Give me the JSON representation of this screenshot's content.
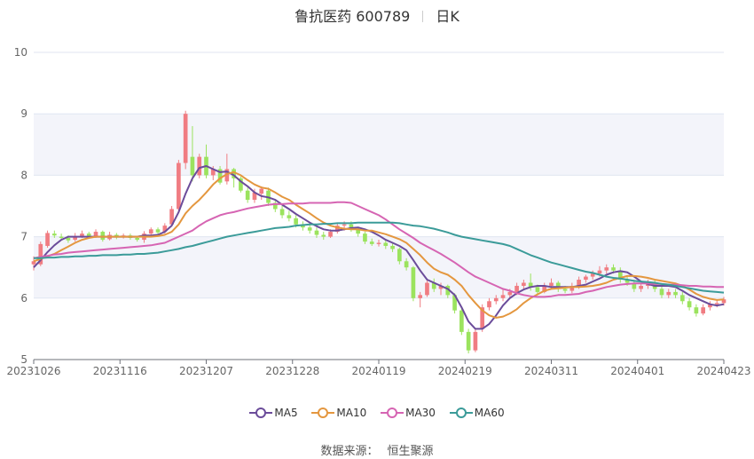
{
  "title": {
    "name": "鲁抗医药 600789",
    "period": "日K"
  },
  "source": {
    "label": "数据来源：",
    "value": "恒生聚源"
  },
  "colors": {
    "up": "#f07c82",
    "down": "#9be35e",
    "ma5": "#6b4c9a",
    "ma10": "#e4973f",
    "ma30": "#d665b3",
    "ma60": "#3b9b99",
    "band": "#f3f4fa",
    "grid": "#e0e6f1"
  },
  "chart_data": {
    "type": "candlestick",
    "ylim": [
      5,
      10
    ],
    "yticks": [
      5,
      6,
      7,
      8,
      9,
      10
    ],
    "xticks": [
      "20231026",
      "20231116",
      "20231207",
      "20231228",
      "20240119",
      "20240219",
      "20240311",
      "20240401",
      "20240423"
    ],
    "legend": [
      "MA5",
      "MA10",
      "MA30",
      "MA60"
    ],
    "legend_position": "bottom",
    "candles": [
      [
        6.55,
        6.6,
        6.68,
        6.45
      ],
      [
        6.55,
        6.88,
        6.92,
        6.52
      ],
      [
        6.85,
        7.06,
        7.1,
        6.82
      ],
      [
        7.05,
        7.02,
        7.1,
        6.98
      ],
      [
        7.0,
        6.98,
        7.05,
        6.94
      ],
      [
        6.98,
        6.94,
        7.02,
        6.9
      ],
      [
        6.95,
        7.0,
        7.06,
        6.92
      ],
      [
        7.0,
        7.05,
        7.1,
        6.98
      ],
      [
        7.05,
        7.0,
        7.08,
        6.97
      ],
      [
        7.0,
        7.08,
        7.12,
        6.98
      ],
      [
        7.08,
        6.95,
        7.1,
        6.92
      ],
      [
        6.96,
        7.03,
        7.08,
        6.94
      ],
      [
        7.03,
        7.0,
        7.06,
        6.96
      ],
      [
        7.0,
        7.02,
        7.05,
        6.97
      ],
      [
        7.02,
        6.98,
        7.05,
        6.95
      ],
      [
        6.98,
        6.95,
        7.0,
        6.92
      ],
      [
        6.95,
        7.05,
        7.09,
        6.9
      ],
      [
        7.05,
        7.12,
        7.15,
        7.02
      ],
      [
        7.12,
        7.07,
        7.15,
        7.04
      ],
      [
        7.08,
        7.18,
        7.22,
        7.05
      ],
      [
        7.2,
        7.45,
        7.5,
        7.18
      ],
      [
        7.45,
        8.2,
        8.25,
        7.4
      ],
      [
        8.2,
        9.0,
        9.05,
        8.1
      ],
      [
        8.3,
        8.0,
        8.8,
        7.9
      ],
      [
        8.0,
        8.3,
        8.35,
        7.95
      ],
      [
        8.3,
        8.0,
        8.5,
        7.95
      ],
      [
        8.0,
        8.1,
        8.15,
        7.92
      ],
      [
        8.1,
        7.88,
        8.15,
        7.85
      ],
      [
        7.9,
        8.1,
        8.35,
        7.85
      ],
      [
        8.1,
        7.95,
        8.12,
        7.8
      ],
      [
        7.95,
        7.75,
        7.98,
        7.72
      ],
      [
        7.75,
        7.6,
        7.8,
        7.55
      ],
      [
        7.6,
        7.72,
        7.78,
        7.55
      ],
      [
        7.7,
        7.78,
        7.82,
        7.6
      ],
      [
        7.75,
        7.55,
        7.8,
        7.5
      ],
      [
        7.55,
        7.45,
        7.6,
        7.4
      ],
      [
        7.45,
        7.35,
        7.5,
        7.3
      ],
      [
        7.35,
        7.3,
        7.42,
        7.25
      ],
      [
        7.3,
        7.2,
        7.35,
        7.15
      ],
      [
        7.2,
        7.15,
        7.25,
        7.1
      ],
      [
        7.15,
        7.1,
        7.2,
        7.05
      ],
      [
        7.1,
        7.03,
        7.15,
        6.98
      ],
      [
        7.03,
        7.0,
        7.08,
        6.95
      ],
      [
        7.0,
        7.08,
        7.12,
        6.98
      ],
      [
        7.08,
        7.18,
        7.22,
        7.05
      ],
      [
        7.18,
        7.2,
        7.25,
        7.1
      ],
      [
        7.2,
        7.12,
        7.25,
        7.08
      ],
      [
        7.12,
        7.05,
        7.15,
        7.0
      ],
      [
        7.05,
        6.92,
        7.08,
        6.88
      ],
      [
        6.92,
        6.88,
        6.97,
        6.85
      ],
      [
        6.88,
        6.9,
        6.95,
        6.84
      ],
      [
        6.9,
        6.85,
        6.95,
        6.8
      ],
      [
        6.85,
        6.8,
        6.9,
        6.75
      ],
      [
        6.8,
        6.6,
        6.82,
        6.55
      ],
      [
        6.6,
        6.5,
        6.65,
        6.45
      ],
      [
        6.5,
        6.0,
        6.52,
        5.95
      ],
      [
        6.0,
        6.05,
        6.1,
        5.85
      ],
      [
        6.05,
        6.25,
        6.3,
        6.02
      ],
      [
        6.25,
        6.15,
        6.32,
        6.1
      ],
      [
        6.15,
        6.2,
        6.25,
        6.05
      ],
      [
        6.2,
        6.05,
        6.22,
        6.0
      ],
      [
        6.05,
        5.8,
        6.08,
        5.75
      ],
      [
        5.8,
        5.45,
        5.85,
        5.4
      ],
      [
        5.45,
        5.15,
        5.5,
        5.1
      ],
      [
        5.15,
        5.45,
        5.5,
        5.12
      ],
      [
        5.5,
        5.85,
        5.9,
        5.45
      ],
      [
        5.85,
        5.95,
        6.0,
        5.8
      ],
      [
        5.95,
        6.0,
        6.05,
        5.9
      ],
      [
        6.0,
        6.05,
        6.15,
        5.95
      ],
      [
        6.05,
        6.1,
        6.15,
        6.0
      ],
      [
        6.1,
        6.2,
        6.25,
        6.05
      ],
      [
        6.2,
        6.25,
        6.3,
        6.15
      ],
      [
        6.25,
        6.18,
        6.4,
        6.12
      ],
      [
        6.18,
        6.1,
        6.22,
        6.05
      ],
      [
        6.1,
        6.2,
        6.25,
        6.08
      ],
      [
        6.2,
        6.25,
        6.32,
        6.15
      ],
      [
        6.25,
        6.15,
        6.28,
        6.1
      ],
      [
        6.15,
        6.12,
        6.2,
        6.08
      ],
      [
        6.12,
        6.2,
        6.25,
        6.08
      ],
      [
        6.2,
        6.3,
        6.35,
        6.15
      ],
      [
        6.3,
        6.35,
        6.38,
        6.25
      ],
      [
        6.35,
        6.4,
        6.45,
        6.3
      ],
      [
        6.4,
        6.45,
        6.52,
        6.35
      ],
      [
        6.45,
        6.5,
        6.55,
        6.4
      ],
      [
        6.5,
        6.45,
        6.55,
        6.4
      ],
      [
        6.45,
        6.3,
        6.5,
        6.25
      ],
      [
        6.3,
        6.25,
        6.35,
        6.2
      ],
      [
        6.25,
        6.15,
        6.3,
        6.1
      ],
      [
        6.15,
        6.2,
        6.25,
        6.1
      ],
      [
        6.2,
        6.25,
        6.3,
        6.15
      ],
      [
        6.25,
        6.15,
        6.3,
        6.1
      ],
      [
        6.15,
        6.05,
        6.2,
        6.0
      ],
      [
        6.05,
        6.1,
        6.15,
        6.0
      ],
      [
        6.1,
        6.05,
        6.15,
        6.0
      ],
      [
        6.05,
        5.95,
        6.1,
        5.9
      ],
      [
        5.95,
        5.85,
        6.0,
        5.8
      ],
      [
        5.85,
        5.75,
        5.9,
        5.7
      ],
      [
        5.75,
        5.85,
        5.9,
        5.72
      ],
      [
        5.85,
        5.9,
        5.95,
        5.8
      ],
      [
        5.9,
        5.92,
        5.97,
        5.85
      ],
      [
        5.92,
        5.98,
        6.02,
        5.88
      ]
    ],
    "series": [
      {
        "name": "MA5",
        "values": [
          6.5,
          6.62,
          6.75,
          6.86,
          6.95,
          7.0,
          7.0,
          7.0,
          7.0,
          7.0,
          7.0,
          7.0,
          7.0,
          7.0,
          7.0,
          7.0,
          7.02,
          7.02,
          7.03,
          7.08,
          7.18,
          7.4,
          7.7,
          7.95,
          8.12,
          8.15,
          8.1,
          8.05,
          8.06,
          8.0,
          7.9,
          7.82,
          7.72,
          7.66,
          7.64,
          7.6,
          7.52,
          7.45,
          7.37,
          7.3,
          7.23,
          7.17,
          7.12,
          7.1,
          7.1,
          7.12,
          7.14,
          7.15,
          7.12,
          7.08,
          7.02,
          6.95,
          6.9,
          6.85,
          6.78,
          6.62,
          6.45,
          6.3,
          6.25,
          6.2,
          6.15,
          6.05,
          5.85,
          5.62,
          5.5,
          5.5,
          5.58,
          5.72,
          5.88,
          6.0,
          6.08,
          6.14,
          6.18,
          6.2,
          6.2,
          6.18,
          6.18,
          6.18,
          6.18,
          6.2,
          6.22,
          6.27,
          6.32,
          6.38,
          6.42,
          6.44,
          6.42,
          6.35,
          6.27,
          6.23,
          6.2,
          6.2,
          6.2,
          6.18,
          6.12,
          6.05,
          6.0,
          5.95,
          5.9,
          5.88,
          5.9
        ]
      },
      {
        "name": "MA10",
        "values": [
          6.6,
          6.64,
          6.68,
          6.72,
          6.78,
          6.84,
          6.9,
          6.95,
          6.98,
          7.0,
          7.0,
          7.0,
          7.0,
          7.0,
          7.0,
          7.0,
          7.0,
          7.0,
          7.01,
          7.03,
          7.08,
          7.2,
          7.38,
          7.5,
          7.6,
          7.72,
          7.85,
          7.95,
          8.02,
          8.05,
          8.0,
          7.92,
          7.85,
          7.8,
          7.78,
          7.72,
          7.65,
          7.6,
          7.52,
          7.45,
          7.38,
          7.3,
          7.23,
          7.18,
          7.15,
          7.13,
          7.12,
          7.12,
          7.1,
          7.1,
          7.07,
          7.04,
          7.0,
          6.96,
          6.9,
          6.8,
          6.7,
          6.58,
          6.48,
          6.42,
          6.38,
          6.3,
          6.2,
          6.05,
          5.92,
          5.8,
          5.72,
          5.68,
          5.7,
          5.75,
          5.82,
          5.92,
          6.0,
          6.06,
          6.12,
          6.15,
          6.16,
          6.17,
          6.18,
          6.18,
          6.19,
          6.2,
          6.22,
          6.25,
          6.3,
          6.33,
          6.36,
          6.36,
          6.35,
          6.33,
          6.3,
          6.28,
          6.26,
          6.24,
          6.2,
          6.14,
          6.07,
          6.02,
          5.99,
          5.97,
          5.98
        ]
      },
      {
        "name": "MA30",
        "values": [
          6.65,
          6.67,
          6.69,
          6.71,
          6.72,
          6.74,
          6.75,
          6.76,
          6.77,
          6.78,
          6.79,
          6.8,
          6.81,
          6.82,
          6.83,
          6.84,
          6.85,
          6.86,
          6.88,
          6.9,
          6.95,
          7.0,
          7.05,
          7.1,
          7.18,
          7.25,
          7.3,
          7.35,
          7.38,
          7.4,
          7.43,
          7.46,
          7.48,
          7.5,
          7.52,
          7.53,
          7.53,
          7.54,
          7.54,
          7.54,
          7.55,
          7.55,
          7.55,
          7.55,
          7.56,
          7.56,
          7.55,
          7.5,
          7.45,
          7.4,
          7.35,
          7.28,
          7.2,
          7.12,
          7.05,
          6.98,
          6.9,
          6.84,
          6.78,
          6.72,
          6.65,
          6.58,
          6.5,
          6.42,
          6.35,
          6.3,
          6.25,
          6.2,
          6.15,
          6.12,
          6.08,
          6.05,
          6.03,
          6.02,
          6.02,
          6.03,
          6.05,
          6.05,
          6.06,
          6.07,
          6.1,
          6.12,
          6.15,
          6.18,
          6.2,
          6.22,
          6.23,
          6.24,
          6.24,
          6.24,
          6.23,
          6.23,
          6.22,
          6.22,
          6.21,
          6.2,
          6.2,
          6.19,
          6.19,
          6.18,
          6.18
        ]
      },
      {
        "name": "MA60",
        "values": [
          6.65,
          6.65,
          6.66,
          6.66,
          6.67,
          6.67,
          6.68,
          6.68,
          6.69,
          6.69,
          6.7,
          6.7,
          6.7,
          6.71,
          6.71,
          6.72,
          6.72,
          6.73,
          6.74,
          6.76,
          6.78,
          6.8,
          6.83,
          6.85,
          6.88,
          6.91,
          6.94,
          6.97,
          7.0,
          7.02,
          7.04,
          7.06,
          7.08,
          7.1,
          7.12,
          7.14,
          7.15,
          7.16,
          7.18,
          7.19,
          7.2,
          7.2,
          7.21,
          7.21,
          7.22,
          7.22,
          7.22,
          7.23,
          7.23,
          7.23,
          7.23,
          7.23,
          7.23,
          7.22,
          7.2,
          7.18,
          7.17,
          7.15,
          7.13,
          7.1,
          7.07,
          7.03,
          7.0,
          6.98,
          6.96,
          6.94,
          6.92,
          6.9,
          6.88,
          6.85,
          6.8,
          6.75,
          6.7,
          6.66,
          6.62,
          6.58,
          6.55,
          6.52,
          6.49,
          6.46,
          6.43,
          6.41,
          6.38,
          6.35,
          6.33,
          6.32,
          6.3,
          6.28,
          6.27,
          6.26,
          6.25,
          6.23,
          6.22,
          6.2,
          6.18,
          6.16,
          6.14,
          6.12,
          6.11,
          6.1,
          6.09
        ]
      }
    ]
  }
}
